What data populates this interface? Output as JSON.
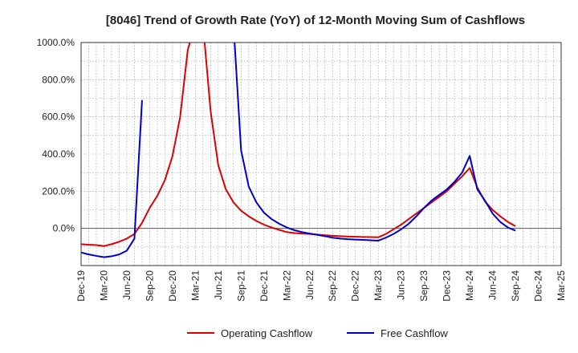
{
  "chart_data": {
    "type": "line",
    "title": "[8046]  Trend of Growth Rate (YoY) of 12-Month Moving Sum of Cashflows",
    "xlabel": "",
    "ylabel": "",
    "x_tick_labels": [
      "Dec-19",
      "Mar-20",
      "Jun-20",
      "Sep-20",
      "Dec-20",
      "Mar-21",
      "Jun-21",
      "Sep-21",
      "Dec-21",
      "Mar-22",
      "Jun-22",
      "Sep-22",
      "Dec-22",
      "Mar-23",
      "Jun-23",
      "Sep-23",
      "Dec-23",
      "Mar-24",
      "Jun-24",
      "Sep-24",
      "Dec-24",
      "Mar-25"
    ],
    "y_ticks": [
      0,
      200,
      400,
      600,
      800,
      1000
    ],
    "y_tick_labels": [
      "0.0%",
      "200.0%",
      "400.0%",
      "600.0%",
      "800.0%",
      "1000.0%"
    ],
    "ylim": [
      -200,
      1000
    ],
    "grid": true,
    "legend_position": "bottom",
    "series": [
      {
        "name": "Operating Cashflow",
        "color": "#e00000",
        "x": [
          "Dec-19",
          "Jan-20",
          "Feb-20",
          "Mar-20",
          "Apr-20",
          "May-20",
          "Jun-20",
          "Jul-20",
          "Aug-20",
          "Sep-20",
          "Oct-20",
          "Nov-20",
          "Dec-20",
          "Jan-21",
          "Feb-21",
          "Mar-21",
          "Apr-21",
          "May-21",
          "Jun-21",
          "Jul-21",
          "Aug-21",
          "Sep-21",
          "Oct-21",
          "Nov-21",
          "Dec-21",
          "Jan-22",
          "Feb-22",
          "Mar-22",
          "Apr-22",
          "May-22",
          "Jun-22",
          "Jul-22",
          "Aug-22",
          "Sep-22",
          "Oct-22",
          "Nov-22",
          "Dec-22",
          "Jan-23",
          "Feb-23",
          "Mar-23",
          "Apr-23",
          "May-23",
          "Jun-23",
          "Jul-23",
          "Aug-23",
          "Sep-23",
          "Oct-23",
          "Nov-23",
          "Dec-23",
          "Jan-24",
          "Feb-24",
          "Mar-24",
          "Apr-24",
          "May-24",
          "Jun-24",
          "Jul-24",
          "Aug-24",
          "Sep-24"
        ],
        "y": [
          -85,
          -88,
          -90,
          -95,
          -85,
          -72,
          -55,
          -30,
          30,
          110,
          175,
          260,
          390,
          600,
          960,
          1100,
          1100,
          630,
          340,
          210,
          140,
          95,
          65,
          40,
          20,
          5,
          -8,
          -20,
          -25,
          -28,
          -30,
          -33,
          -37,
          -40,
          -42,
          -44,
          -45,
          -46,
          -47,
          -48,
          -30,
          -5,
          20,
          50,
          80,
          110,
          140,
          170,
          200,
          240,
          280,
          325,
          220,
          145,
          100,
          65,
          35,
          12
        ]
      },
      {
        "name": "Free Cashflow",
        "color": "#0000cc",
        "x": [
          "Dec-19",
          "Jan-20",
          "Feb-20",
          "Mar-20",
          "Apr-20",
          "May-20",
          "Jun-20",
          "Jul-20",
          "Aug-20",
          "Sep-20",
          "Oct-20",
          "Nov-20",
          "Dec-20",
          "Jan-21",
          "Feb-21",
          "Mar-21",
          "Apr-21",
          "May-21",
          "Jun-21",
          "Jul-21",
          "Aug-21",
          "Sep-21",
          "Oct-21",
          "Nov-21",
          "Dec-21",
          "Jan-22",
          "Feb-22",
          "Mar-22",
          "Apr-22",
          "May-22",
          "Jun-22",
          "Jul-22",
          "Aug-22",
          "Sep-22",
          "Oct-22",
          "Nov-22",
          "Dec-22",
          "Jan-23",
          "Feb-23",
          "Mar-23",
          "Apr-23",
          "May-23",
          "Jun-23",
          "Jul-23",
          "Aug-23",
          "Sep-23",
          "Oct-23",
          "Nov-23",
          "Dec-23",
          "Jan-24",
          "Feb-24",
          "Mar-24",
          "Apr-24",
          "May-24",
          "Jun-24",
          "Jul-24",
          "Aug-24",
          "Sep-24"
        ],
        "y": [
          -130,
          -140,
          -148,
          -155,
          -150,
          -140,
          -120,
          -55,
          690,
          null,
          null,
          null,
          null,
          null,
          null,
          null,
          null,
          null,
          null,
          null,
          1100,
          420,
          225,
          140,
          85,
          50,
          25,
          5,
          -10,
          -20,
          -28,
          -35,
          -42,
          -50,
          -55,
          -58,
          -60,
          -62,
          -64,
          -66,
          -50,
          -30,
          -5,
          25,
          65,
          110,
          150,
          180,
          210,
          250,
          300,
          390,
          210,
          150,
          80,
          35,
          5,
          -12
        ]
      }
    ]
  }
}
